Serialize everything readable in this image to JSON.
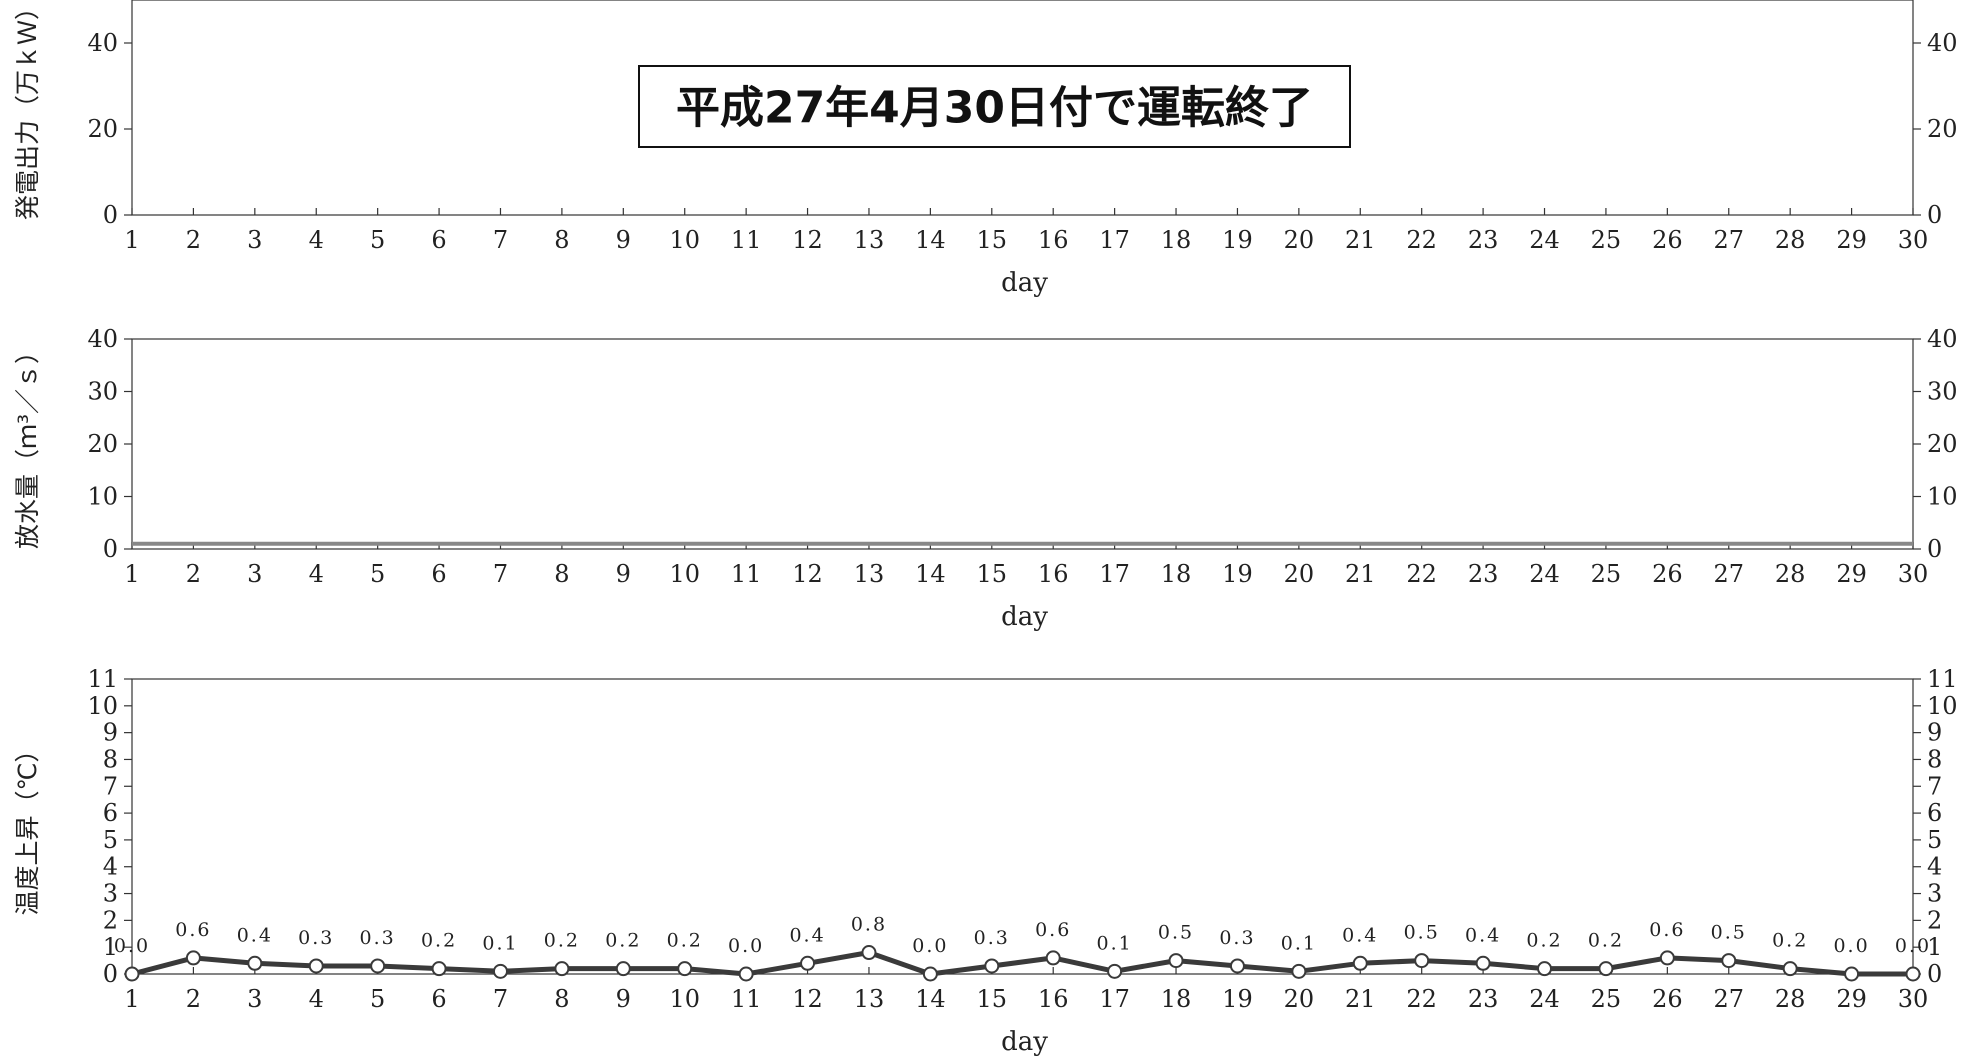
{
  "chart_data": [
    {
      "type": "line",
      "ylabel": "発電出力（万ｋＷ）",
      "xlabel": "day",
      "x": [
        1,
        2,
        3,
        4,
        5,
        6,
        7,
        8,
        9,
        10,
        11,
        12,
        13,
        14,
        15,
        16,
        17,
        18,
        19,
        20,
        21,
        22,
        23,
        24,
        25,
        26,
        27,
        28,
        29,
        30
      ],
      "ylim": [
        0,
        50
      ],
      "yticks": [
        0,
        20,
        40
      ],
      "series": [],
      "annotation": "平成27年4月30日付で運転終了"
    },
    {
      "type": "line",
      "ylabel": "放水量（ｍ³／ｓ）",
      "xlabel": "day",
      "x": [
        1,
        2,
        3,
        4,
        5,
        6,
        7,
        8,
        9,
        10,
        11,
        12,
        13,
        14,
        15,
        16,
        17,
        18,
        19,
        20,
        21,
        22,
        23,
        24,
        25,
        26,
        27,
        28,
        29,
        30
      ],
      "ylim": [
        0,
        40
      ],
      "yticks": [
        0,
        10,
        20,
        30,
        40
      ],
      "series": [
        {
          "values": [
            1,
            1,
            1,
            1,
            1,
            1,
            1,
            1,
            1,
            1,
            1,
            1,
            1,
            1,
            1,
            1,
            1,
            1,
            1,
            1,
            1,
            1,
            1,
            1,
            1,
            1,
            1,
            1,
            1,
            1
          ],
          "color": "#888888"
        }
      ]
    },
    {
      "type": "line",
      "ylabel": "温度上昇（℃）",
      "xlabel": "day",
      "x": [
        1,
        2,
        3,
        4,
        5,
        6,
        7,
        8,
        9,
        10,
        11,
        12,
        13,
        14,
        15,
        16,
        17,
        18,
        19,
        20,
        21,
        22,
        23,
        24,
        25,
        26,
        27,
        28,
        29,
        30
      ],
      "ylim": [
        0,
        11
      ],
      "yticks": [
        0,
        1,
        2,
        3,
        4,
        5,
        6,
        7,
        8,
        9,
        10,
        11
      ],
      "series": [
        {
          "values": [
            0.0,
            0.6,
            0.4,
            0.3,
            0.3,
            0.2,
            0.1,
            0.2,
            0.2,
            0.2,
            0.0,
            0.4,
            0.8,
            0.0,
            0.3,
            0.6,
            0.1,
            0.5,
            0.3,
            0.1,
            0.4,
            0.5,
            0.4,
            0.2,
            0.2,
            0.6,
            0.5,
            0.2,
            0.0,
            0.0
          ],
          "labels": [
            "0.0",
            "0.6",
            "0.4",
            "0.3",
            "0.3",
            "0.2",
            "0.1",
            "0.2",
            "0.2",
            "0.2",
            "0.0",
            "0.4",
            "0.8",
            "0.0",
            "0.3",
            "0.6",
            "0.1",
            "0.5",
            "0.3",
            "0.1",
            "0.4",
            "0.5",
            "0.4",
            "0.2",
            "0.2",
            "0.6",
            "0.5",
            "0.2",
            "0.0",
            "0.0"
          ],
          "color": "#3a3a3a"
        }
      ]
    }
  ]
}
